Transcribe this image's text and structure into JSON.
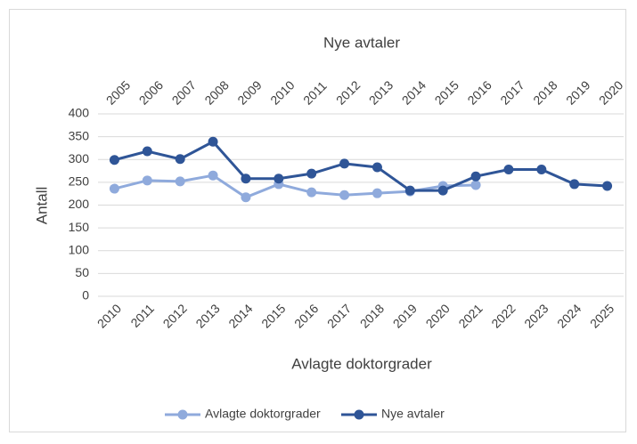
{
  "chart_data": {
    "type": "line",
    "x_label": "Avlagte doktorgrader",
    "x2_label": "Nye avtaler",
    "y_label": "Antall",
    "categories": [
      "2010",
      "2011",
      "2012",
      "2013",
      "2014",
      "2015",
      "2016",
      "2017",
      "2018",
      "2019",
      "2020",
      "2021",
      "2022",
      "2023",
      "2024",
      "2025"
    ],
    "x2_categories": [
      "2005",
      "2006",
      "2007",
      "2008",
      "2009",
      "2010",
      "2011",
      "2012",
      "2013",
      "2014",
      "2015",
      "2016",
      "2017",
      "2018",
      "2019",
      "2020"
    ],
    "series": [
      {
        "name": "Avlagte doktorgrader",
        "color": "#8faadc",
        "values": [
          236,
          254,
          252,
          265,
          217,
          246,
          228,
          222,
          226,
          230,
          242,
          244,
          null,
          null,
          null,
          null
        ]
      },
      {
        "name": "Nye avtaler",
        "color": "#2f5597",
        "values": [
          299,
          318,
          301,
          339,
          258,
          258,
          269,
          291,
          283,
          232,
          232,
          263,
          278,
          278,
          246,
          242
        ]
      }
    ],
    "ylim": [
      0,
      400
    ],
    "yticks": [
      0,
      50,
      100,
      150,
      200,
      250,
      300,
      350,
      400
    ],
    "grid": true,
    "legend": "bottom"
  }
}
